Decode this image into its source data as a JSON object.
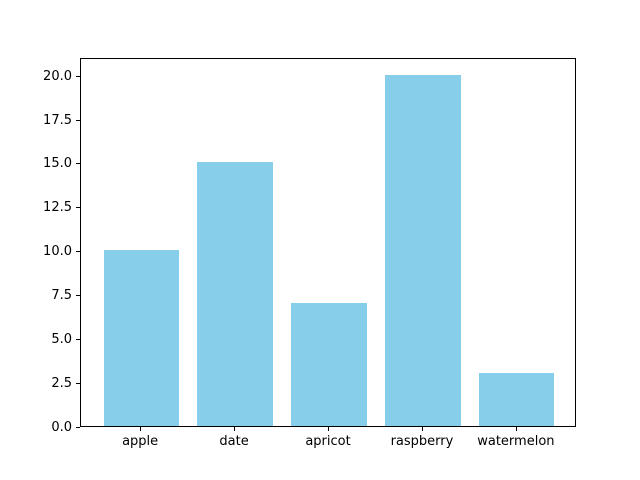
{
  "chart_data": {
    "type": "bar",
    "title": "",
    "xlabel": "",
    "ylabel": "",
    "categories": [
      "apple",
      "date",
      "apricot",
      "raspberry",
      "watermelon"
    ],
    "values": [
      10,
      15,
      7,
      20,
      3
    ],
    "ylim": [
      0,
      21
    ],
    "xlim": [
      -0.64,
      4.64
    ],
    "yticks": [
      0.0,
      2.5,
      5.0,
      7.5,
      10.0,
      12.5,
      15.0,
      17.5,
      20.0
    ],
    "ytick_labels": [
      "0.0",
      "2.5",
      "5.0",
      "7.5",
      "10.0",
      "12.5",
      "15.0",
      "17.5",
      "20.0"
    ],
    "bar_width_units": 0.8,
    "bar_color": "#87CEEB",
    "axis_color": "#000000",
    "text_color": "#000000",
    "background_color": "#ffffff",
    "grid": false,
    "legend": null
  }
}
